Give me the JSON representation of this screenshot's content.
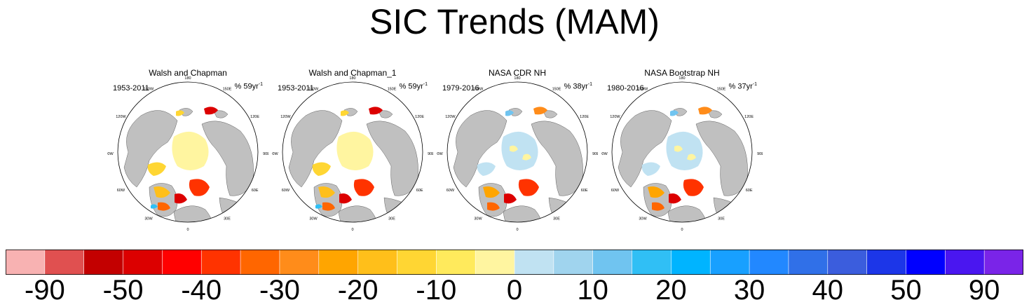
{
  "title": "SIC Trends (MAM)",
  "panels": [
    {
      "title": "Walsh and Chapman",
      "period": "1953-2011",
      "pct": "% 59yr",
      "unit_sup": "-1",
      "style": "early"
    },
    {
      "title": "Walsh and Chapman_1",
      "period": "1953-2011",
      "pct": "% 59yr",
      "unit_sup": "-1",
      "style": "early"
    },
    {
      "title": "NASA CDR NH",
      "period": "1979-2016",
      "pct": "% 38yr",
      "unit_sup": "-1",
      "style": "late"
    },
    {
      "title": "NASA Bootstrap NH",
      "period": "1980-2016",
      "pct": "% 37yr",
      "unit_sup": "-1",
      "style": "late"
    }
  ],
  "map_labels": [
    "180",
    "150E",
    "120E",
    "90E",
    "60E",
    "30E",
    "0",
    "30W",
    "60W",
    "90W",
    "120W",
    "150W"
  ],
  "colorbar": {
    "colors": [
      "#f8b2b2",
      "#e05050",
      "#c30000",
      "#dc0000",
      "#ff0000",
      "#ff3300",
      "#ff6600",
      "#ff8c1a",
      "#ffa500",
      "#ffbf1a",
      "#ffd633",
      "#ffea5c",
      "#fff5a0",
      "#c0e2f2",
      "#a0d4ee",
      "#70c4f0",
      "#30bff5",
      "#00b4ff",
      "#18a0ff",
      "#2288ff",
      "#3070e8",
      "#3b5ddd",
      "#1c36e8",
      "#0000ff",
      "#4a16f0",
      "#7a24e8"
    ],
    "labels": [
      "-90",
      "-50",
      "-40",
      "-30",
      "-20",
      "-10",
      "0",
      "10",
      "20",
      "30",
      "40",
      "50",
      "90"
    ]
  },
  "chart_data": {
    "type": "heatmap",
    "title": "SIC Trends (MAM)",
    "projection": "north polar stereographic",
    "panels": [
      "Walsh and Chapman",
      "Walsh and Chapman_1",
      "NASA CDR NH",
      "NASA Bootstrap NH"
    ],
    "periods": [
      "1953-2011",
      "1953-2011",
      "1979-2016",
      "1980-2016"
    ],
    "units": [
      "% 59yr-1",
      "% 59yr-1",
      "% 38yr-1",
      "% 37yr-1"
    ],
    "colorbar_labels": [
      -90,
      -50,
      -40,
      -30,
      -20,
      -10,
      0,
      10,
      20,
      30,
      40,
      50,
      90
    ],
    "colorbar_bins": 26
  }
}
